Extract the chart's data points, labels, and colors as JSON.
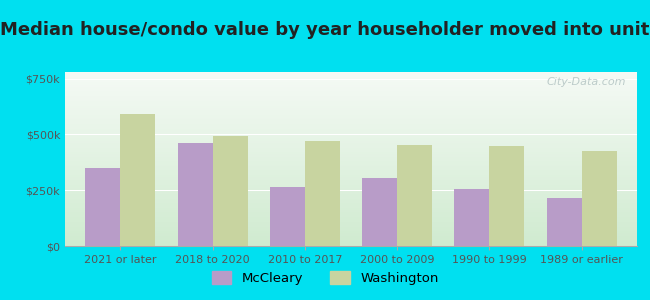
{
  "title": "Median house/condo value by year householder moved into unit",
  "categories": [
    "2021 or later",
    "2018 to 2020",
    "2010 to 2017",
    "2000 to 2009",
    "1990 to 1999",
    "1989 or earlier"
  ],
  "mccleary_values": [
    350000,
    460000,
    265000,
    305000,
    255000,
    215000
  ],
  "washington_values": [
    590000,
    495000,
    470000,
    455000,
    450000,
    425000
  ],
  "mccleary_color": "#b89cc8",
  "washington_color": "#c8d4a0",
  "background_outer": "#00e0f0",
  "background_inner_bottom": "#d0ebd0",
  "background_inner_top": "#f5faf5",
  "yticks": [
    0,
    250000,
    500000,
    750000
  ],
  "ytick_labels": [
    "$0",
    "$250k",
    "$500k",
    "$750k"
  ],
  "ylim": [
    0,
    780000
  ],
  "bar_width": 0.38,
  "title_fontsize": 13,
  "tick_fontsize": 8,
  "legend_labels": [
    "McCleary",
    "Washington"
  ],
  "watermark": "City-Data.com",
  "title_color": "#222222",
  "tick_color": "#555555"
}
